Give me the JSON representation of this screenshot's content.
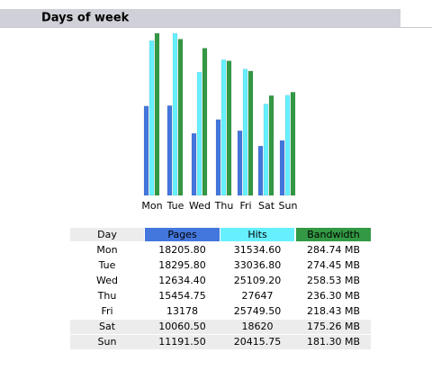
{
  "header": {
    "title": "Days of week"
  },
  "chart_data": {
    "type": "bar",
    "category_label": "Day",
    "categories": [
      "Mon",
      "Tue",
      "Wed",
      "Thu",
      "Fri",
      "Sat",
      "Sun"
    ],
    "series": [
      {
        "name": "Pages",
        "color": "#4477dd",
        "values": [
          18205.8,
          18295.8,
          12634.4,
          15454.75,
          13178,
          10060.5,
          11191.5
        ],
        "value_labels": [
          "18205.80",
          "18295.80",
          "12634.40",
          "15454.75",
          "13178",
          "10060.50",
          "11191.50"
        ]
      },
      {
        "name": "Hits",
        "color": "#66f0ff",
        "values": [
          31534.6,
          33036.8,
          25109.2,
          27647,
          25749.5,
          18620,
          20415.75
        ],
        "value_labels": [
          "31534.60",
          "33036.80",
          "25109.20",
          "27647",
          "25749.50",
          "18620",
          "20415.75"
        ]
      },
      {
        "name": "Bandwidth",
        "color": "#339944",
        "axis": "y2",
        "values": [
          284.74,
          274.45,
          258.53,
          236.3,
          218.43,
          175.26,
          181.3
        ],
        "value_labels": [
          "284.74 MB",
          "274.45 MB",
          "258.53 MB",
          "236.30 MB",
          "218.43 MB",
          "175.26 MB",
          "181.30 MB"
        ]
      }
    ]
  }
}
